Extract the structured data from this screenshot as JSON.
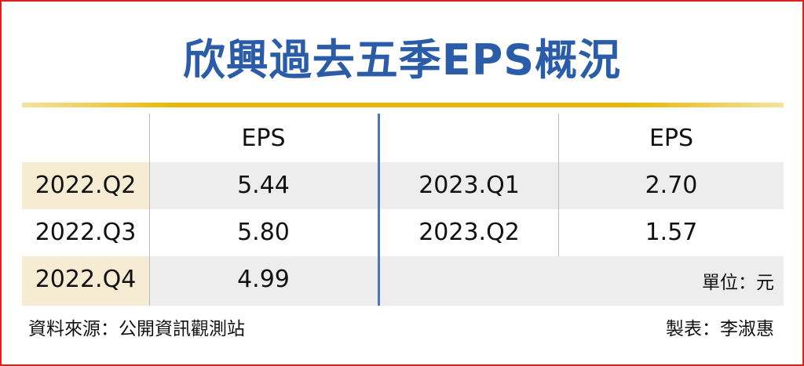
{
  "title": "欣興過去五季EPS概況",
  "tables": [
    {
      "header": [
        "",
        "EPS"
      ],
      "rows": [
        [
          "2022.Q2",
          "5.44"
        ],
        [
          "2022.Q3",
          "5.80"
        ],
        [
          "2022.Q4",
          "4.99"
        ]
      ]
    },
    {
      "header": [
        "",
        "EPS"
      ],
      "rows": [
        [
          "2023.Q1",
          "2.70"
        ],
        [
          "2023.Q2",
          "1.57"
        ]
      ]
    }
  ],
  "unit": "單位：元",
  "source": "資料來源：公開資訊觀測站",
  "author": "製表：李淑惠"
}
